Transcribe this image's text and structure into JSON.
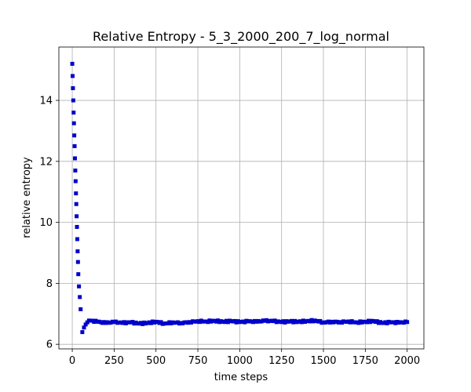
{
  "chart_data": {
    "type": "scatter",
    "title": "Relative Entropy - 5_3_2000_200_7_log_normal",
    "xlabel": "time steps",
    "ylabel": "relative entropy",
    "xlim": [
      -80,
      2100
    ],
    "ylim": [
      5.85,
      15.75
    ],
    "xticks": [
      0,
      250,
      500,
      750,
      1000,
      1250,
      1500,
      1750,
      2000
    ],
    "yticks": [
      6,
      8,
      10,
      12,
      14
    ],
    "grid": true,
    "marker_color": "#0000cc",
    "series": [
      {
        "marker": "square",
        "x": [
          0,
          2,
          4,
          6,
          8,
          10,
          12,
          14,
          16,
          18,
          20,
          22,
          24,
          26,
          28,
          30,
          32,
          34,
          36,
          40,
          45,
          50,
          60,
          70,
          80,
          90,
          100,
          150,
          200,
          250,
          300,
          350,
          400,
          450,
          500,
          550,
          600,
          650,
          700,
          750,
          800,
          850,
          900,
          950,
          1000,
          1050,
          1100,
          1150,
          1200,
          1250,
          1300,
          1350,
          1400,
          1450,
          1500,
          1550,
          1600,
          1650,
          1700,
          1750,
          1800,
          1850,
          1900,
          1950,
          2000
        ],
        "y": [
          15.2,
          14.8,
          14.4,
          14.0,
          13.6,
          13.25,
          12.85,
          12.5,
          12.1,
          11.7,
          11.35,
          10.95,
          10.6,
          10.2,
          9.85,
          9.45,
          9.05,
          8.7,
          8.3,
          7.9,
          7.55,
          7.15,
          6.4,
          6.55,
          6.65,
          6.72,
          6.78,
          6.74,
          6.7,
          6.73,
          6.7,
          6.72,
          6.68,
          6.7,
          6.74,
          6.68,
          6.72,
          6.7,
          6.73,
          6.76,
          6.75,
          6.77,
          6.74,
          6.76,
          6.73,
          6.75,
          6.74,
          6.77,
          6.76,
          6.73,
          6.75,
          6.74,
          6.76,
          6.78,
          6.72,
          6.74,
          6.73,
          6.75,
          6.72,
          6.74,
          6.76,
          6.7,
          6.72,
          6.71,
          6.73
        ]
      }
    ]
  }
}
